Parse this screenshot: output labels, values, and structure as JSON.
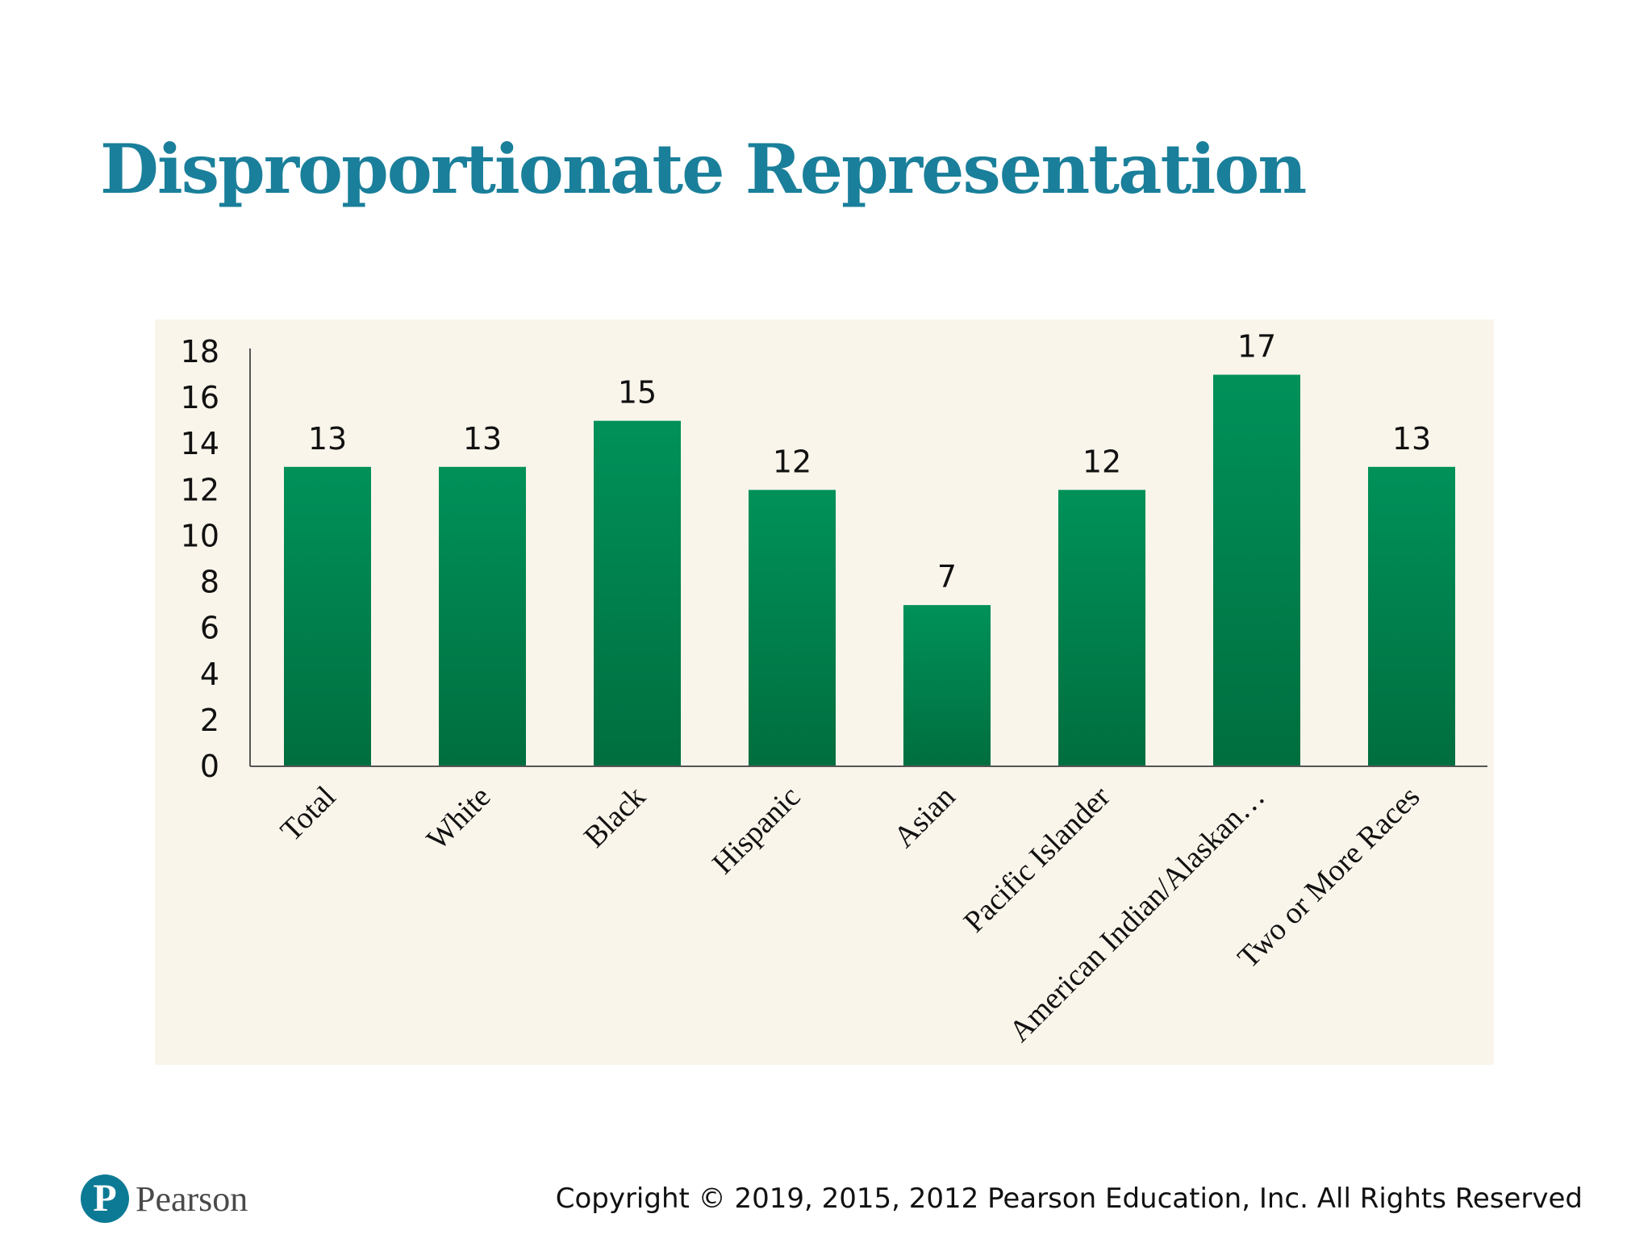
{
  "slide": {
    "title": "Disproportionate Representation",
    "copyright": "Copyright © 2019, 2015, 2012 Pearson Education, Inc. All Rights Reserved",
    "logo": {
      "icon": "pearson-logo-icon",
      "mark": "P",
      "word": "Pearson",
      "color": "#0d7a95"
    }
  },
  "colors": {
    "title": "#1a7f9a",
    "panel": "#faf5eb",
    "bar_top": "#009159",
    "bar_bottom": "#006e3f",
    "axis": "#555555"
  },
  "chart_data": {
    "type": "bar",
    "title": "",
    "xlabel": "",
    "ylabel": "",
    "categories": [
      "Total",
      "White",
      "Black",
      "Hispanic",
      "Asian",
      "Pacific Islander",
      "American Indian/Alaskan…",
      "Two or More Races"
    ],
    "values": [
      13,
      13,
      15,
      12,
      7,
      12,
      17,
      13
    ],
    "ylim": [
      0,
      18
    ],
    "yticks": [
      0,
      2,
      4,
      6,
      8,
      10,
      12,
      14,
      16,
      18
    ],
    "grid": false,
    "legend": "none",
    "data_labels": true
  }
}
